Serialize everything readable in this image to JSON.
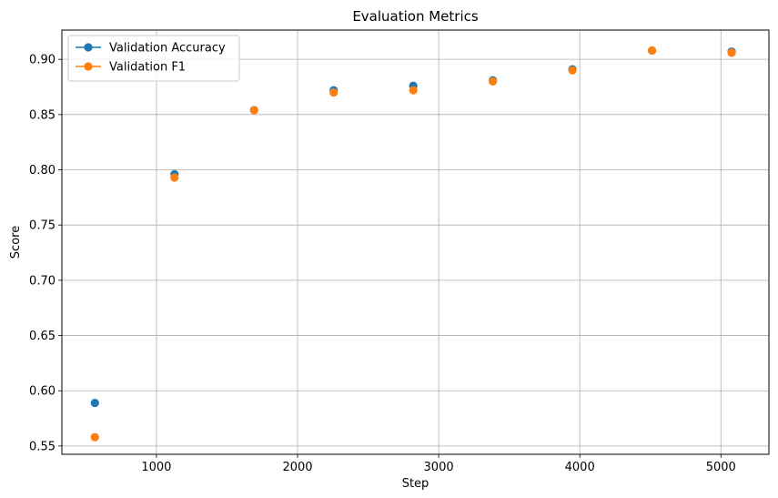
{
  "chart_data": {
    "type": "scatter",
    "title": "Evaluation Metrics",
    "xlabel": "Step",
    "ylabel": "Score",
    "xlim": [
      330,
      5340
    ],
    "ylim": [
      0.5425,
      0.9265
    ],
    "xticks": [
      1000,
      2000,
      3000,
      4000,
      5000
    ],
    "yticks": [
      0.55,
      0.6,
      0.65,
      0.7,
      0.75,
      0.8,
      0.85,
      0.9
    ],
    "xtick_labels": [
      "1000",
      "2000",
      "3000",
      "4000",
      "5000"
    ],
    "ytick_labels": [
      "0.55",
      "0.60",
      "0.65",
      "0.70",
      "0.75",
      "0.80",
      "0.85",
      "0.90"
    ],
    "grid": true,
    "legend_position": "upper-left",
    "x": [
      564,
      1128,
      1692,
      2256,
      2820,
      3384,
      3948,
      4512,
      5076
    ],
    "series": [
      {
        "name": "Validation Accuracy",
        "color": "#1f77b4",
        "values": [
          0.589,
          0.796,
          0.854,
          0.872,
          0.876,
          0.881,
          0.891,
          0.908,
          0.907
        ]
      },
      {
        "name": "Validation F1",
        "color": "#ff7f0e",
        "values": [
          0.558,
          0.793,
          0.854,
          0.87,
          0.872,
          0.88,
          0.89,
          0.908,
          0.906
        ]
      }
    ]
  }
}
